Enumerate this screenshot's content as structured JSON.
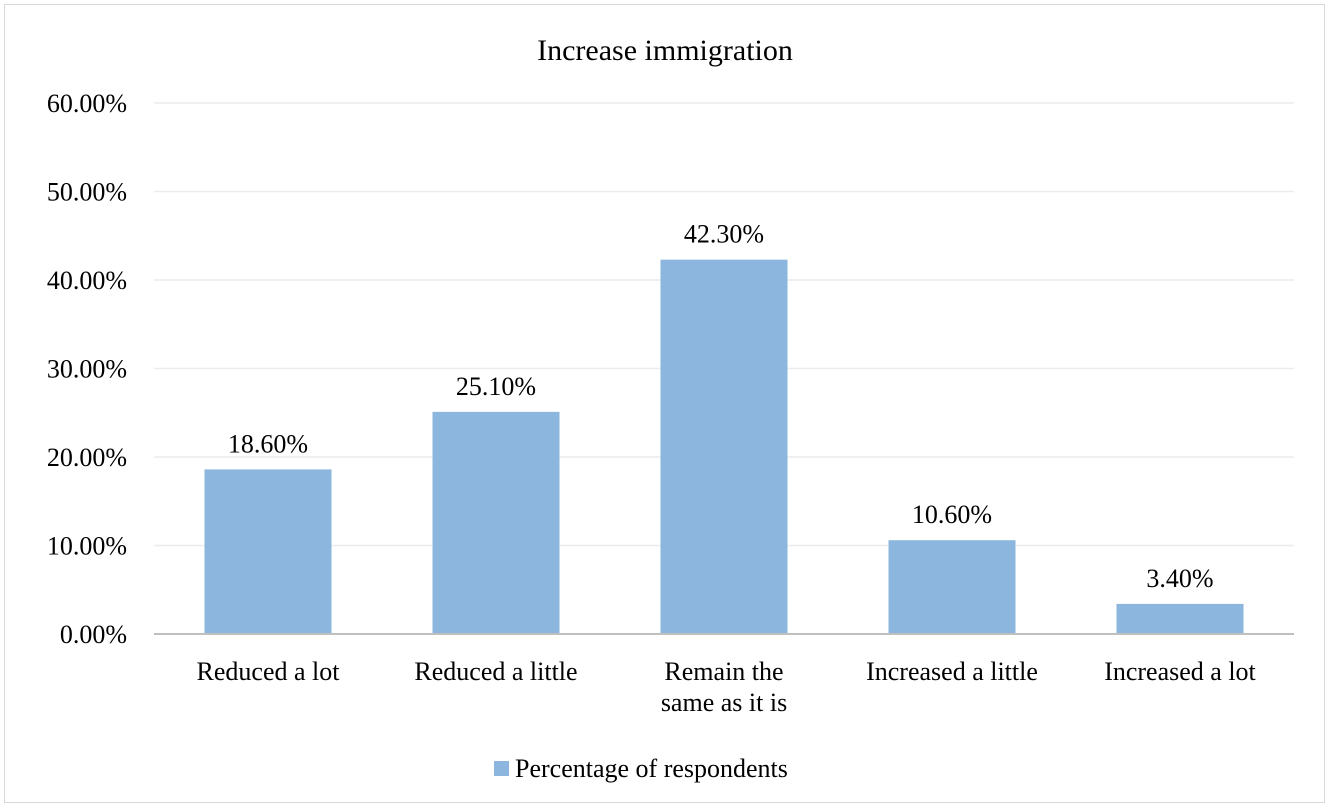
{
  "chart_data": {
    "type": "bar",
    "title": "Increase immigration",
    "xlabel": "",
    "ylabel": "",
    "categories": [
      [
        "Reduced a lot"
      ],
      [
        "Reduced a little"
      ],
      [
        "Remain the",
        "same as it is"
      ],
      [
        "Increased a little"
      ],
      [
        "Increased a lot"
      ]
    ],
    "series": [
      {
        "name": "Percentage of respondents",
        "values": [
          18.6,
          25.1,
          42.3,
          10.6,
          3.4
        ],
        "data_labels": [
          "18.60%",
          "25.10%",
          "42.30%",
          "10.60%",
          "3.40%"
        ],
        "color": "#8db6de"
      }
    ],
    "ylim": [
      0,
      60
    ],
    "yticks": [
      0,
      10,
      20,
      30,
      40,
      50,
      60
    ],
    "ytick_labels": [
      "0.00%",
      "10.00%",
      "20.00%",
      "30.00%",
      "40.00%",
      "50.00%",
      "60.00%"
    ],
    "grid": true,
    "legend_position": "bottom"
  },
  "colors": {
    "bar": "#8db6de",
    "grid": "#ececec",
    "axis": "#bfbfbf",
    "frame": "#d9d9d9"
  }
}
